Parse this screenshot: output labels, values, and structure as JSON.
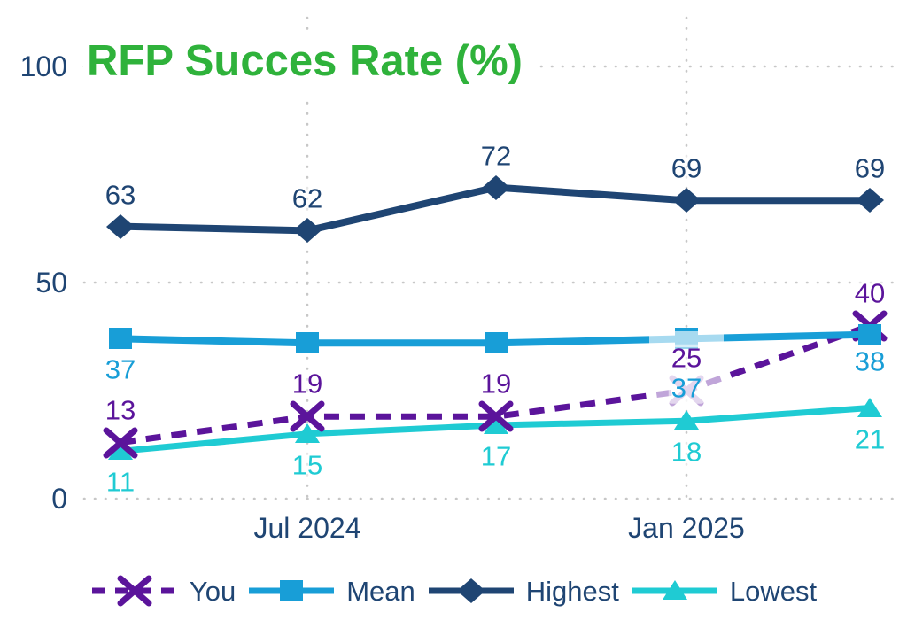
{
  "chart_data": {
    "type": "line",
    "title": "RFP Succes Rate (%)",
    "title_color": "#2FB23B",
    "axis_color": "#1F4573",
    "grid": "dotted",
    "gridline_color": "#c7c7c7",
    "legend_position": "bottom",
    "ylim": [
      0,
      100
    ],
    "y_ticks": [
      "0",
      "50",
      "100"
    ],
    "y_tick_values": [
      0,
      50,
      100
    ],
    "x_point_count": 5,
    "x_tick_labels": [
      {
        "point_index": 1,
        "label": "Jul 2024"
      },
      {
        "point_index": 3,
        "label": "Jan 2025"
      }
    ],
    "series": [
      {
        "name": "You",
        "color": "#5B149B",
        "marker": "x",
        "line": "dashed",
        "values": [
          13,
          19,
          19,
          25,
          40
        ],
        "labels": [
          "13",
          "19",
          "19",
          "25",
          "40"
        ],
        "label_side": "above"
      },
      {
        "name": "Mean",
        "color": "#189ED7",
        "marker": "square",
        "line": "solid",
        "values": [
          37,
          36,
          36,
          37,
          38
        ],
        "labels": [
          "37",
          "",
          "",
          "37",
          "38"
        ],
        "label_side": "below"
      },
      {
        "name": "Highest",
        "color": "#1F4573",
        "marker": "diamond",
        "line": "solid",
        "values": [
          63,
          62,
          72,
          69,
          69
        ],
        "labels": [
          "63",
          "62",
          "72",
          "69",
          "69"
        ],
        "label_side": "above"
      },
      {
        "name": "Lowest",
        "color": "#1FCBD3",
        "marker": "triangle",
        "line": "solid",
        "values": [
          11,
          15,
          17,
          18,
          21
        ],
        "labels": [
          "11",
          "15",
          "17",
          "18",
          "21"
        ],
        "label_side": "below"
      }
    ],
    "legend_order": [
      "You",
      "Mean",
      "Highest",
      "Lowest"
    ]
  }
}
